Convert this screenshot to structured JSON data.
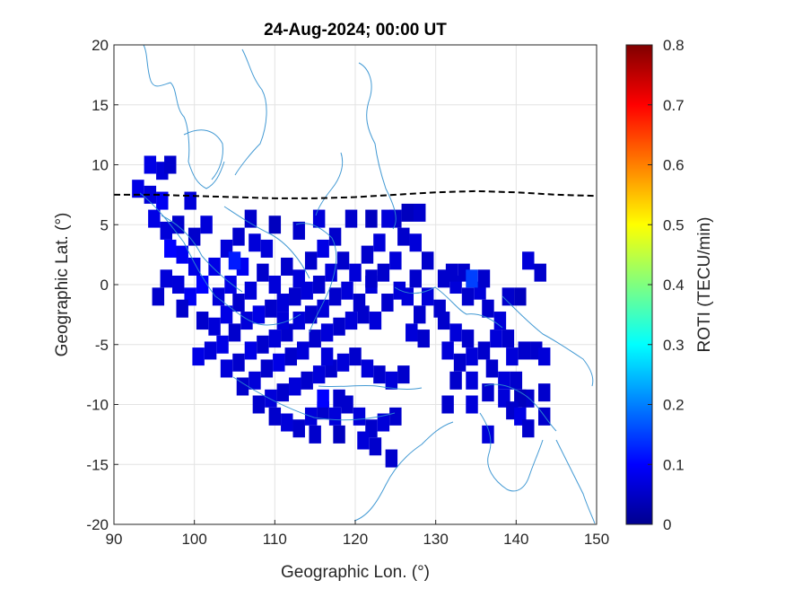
{
  "chart_data": {
    "type": "heatmap",
    "title": "24-Aug-2024; 00:00 UT",
    "xlabel": "Geographic Lon. (°)",
    "ylabel": "Geographic Lat. (°)",
    "xlim": [
      90,
      150
    ],
    "ylim": [
      -20,
      20
    ],
    "xticks": [
      90,
      100,
      110,
      120,
      130,
      140,
      150
    ],
    "yticks": [
      -20,
      -15,
      -10,
      -5,
      0,
      5,
      10,
      15,
      20
    ],
    "grid": true,
    "colorbar": {
      "label": "ROTI (TECU/min)",
      "colormap": "jet",
      "range": [
        0,
        0.8
      ],
      "ticks": [
        0,
        0.1,
        0.2,
        0.3,
        0.4,
        0.5,
        0.6,
        0.7,
        0.8
      ],
      "ticklabels": [
        "0",
        "0.1",
        "0.2",
        "0.3",
        "0.4",
        "0.5",
        "0.6",
        "0.7",
        "0.8"
      ]
    },
    "cell_size_deg": [
      1.5,
      1.5
    ],
    "roti_cells_lon_lat_value": [
      [
        94.5,
        10,
        0.08
      ],
      [
        96,
        9.5,
        0.07
      ],
      [
        97,
        10,
        0.06
      ],
      [
        93,
        8,
        0.08
      ],
      [
        94.5,
        7.5,
        0.07
      ],
      [
        96,
        7,
        0.09
      ],
      [
        95,
        5.5,
        0.08
      ],
      [
        96.5,
        4.5,
        0.07
      ],
      [
        98,
        5,
        0.06
      ],
      [
        99.5,
        7,
        0.07
      ],
      [
        97,
        3,
        0.1
      ],
      [
        98.5,
        2.5,
        0.09
      ],
      [
        100,
        4,
        0.06
      ],
      [
        101.5,
        5,
        0.07
      ],
      [
        100,
        1.5,
        0.08
      ],
      [
        96.5,
        0.5,
        0.07
      ],
      [
        95.5,
        -1,
        0.06
      ],
      [
        98,
        0,
        0.07
      ],
      [
        99.5,
        -1,
        0.09
      ],
      [
        101,
        0,
        0.1
      ],
      [
        102.5,
        1.5,
        0.08
      ],
      [
        104,
        3,
        0.07
      ],
      [
        105.5,
        4,
        0.06
      ],
      [
        103,
        -1,
        0.07
      ],
      [
        104.5,
        0,
        0.08
      ],
      [
        106,
        1.5,
        0.09
      ],
      [
        107.5,
        3.5,
        0.07
      ],
      [
        109,
        3,
        0.07
      ],
      [
        101,
        -3,
        0.06
      ],
      [
        102.5,
        -3.5,
        0.07
      ],
      [
        104,
        -2.5,
        0.08
      ],
      [
        105.5,
        -1.5,
        0.06
      ],
      [
        107,
        -0.5,
        0.07
      ],
      [
        108.5,
        1,
        0.06
      ],
      [
        110,
        0,
        0.07
      ],
      [
        111.5,
        1.5,
        0.06
      ],
      [
        113,
        0.5,
        0.07
      ],
      [
        114.5,
        2,
        0.06
      ],
      [
        116,
        3,
        0.08
      ],
      [
        117.5,
        4,
        0.06
      ],
      [
        102,
        -5.5,
        0.07
      ],
      [
        103.5,
        -5,
        0.08
      ],
      [
        105,
        -4,
        0.06
      ],
      [
        106.5,
        -3,
        0.07
      ],
      [
        108,
        -2.5,
        0.08
      ],
      [
        109.5,
        -2,
        0.06
      ],
      [
        111,
        -1.5,
        0.07
      ],
      [
        112.5,
        -1,
        0.06
      ],
      [
        114,
        -0.5,
        0.07
      ],
      [
        115.5,
        0,
        0.06
      ],
      [
        117,
        1,
        0.07
      ],
      [
        118.5,
        2,
        0.06
      ],
      [
        120,
        1,
        0.07
      ],
      [
        121.5,
        2.5,
        0.06
      ],
      [
        123,
        3.5,
        0.07
      ],
      [
        104,
        -7,
        0.07
      ],
      [
        105.5,
        -6.5,
        0.06
      ],
      [
        107,
        -5.5,
        0.08
      ],
      [
        108.5,
        -5,
        0.06
      ],
      [
        110,
        -4.5,
        0.07
      ],
      [
        111.5,
        -4,
        0.06
      ],
      [
        113,
        -3,
        0.07
      ],
      [
        114.5,
        -2.5,
        0.06
      ],
      [
        116,
        -2,
        0.07
      ],
      [
        117.5,
        -1,
        0.06
      ],
      [
        119,
        -0.5,
        0.07
      ],
      [
        120.5,
        -1.5,
        0.06
      ],
      [
        122,
        0,
        0.07
      ],
      [
        123.5,
        1,
        0.06
      ],
      [
        125,
        2,
        0.07
      ],
      [
        106,
        -8.5,
        0.06
      ],
      [
        107.5,
        -8,
        0.07
      ],
      [
        109,
        -7,
        0.06
      ],
      [
        110.5,
        -6.5,
        0.08
      ],
      [
        112,
        -6,
        0.06
      ],
      [
        113.5,
        -5.5,
        0.07
      ],
      [
        115,
        -4.5,
        0.06
      ],
      [
        116.5,
        -4,
        0.07
      ],
      [
        118,
        -3.5,
        0.06
      ],
      [
        119.5,
        -3,
        0.07
      ],
      [
        121,
        -2.5,
        0.06
      ],
      [
        122.5,
        -3,
        0.07
      ],
      [
        124,
        -1.5,
        0.06
      ],
      [
        125.5,
        -0.5,
        0.07
      ],
      [
        108,
        -10,
        0.06
      ],
      [
        109.5,
        -9.5,
        0.07
      ],
      [
        111,
        -9,
        0.06
      ],
      [
        112.5,
        -8.5,
        0.07
      ],
      [
        114,
        -8,
        0.06
      ],
      [
        115.5,
        -7.5,
        0.07
      ],
      [
        117,
        -7,
        0.06
      ],
      [
        118.5,
        -6.5,
        0.07
      ],
      [
        120,
        -6,
        0.06
      ],
      [
        121.5,
        -7,
        0.07
      ],
      [
        123,
        -7.5,
        0.06
      ],
      [
        124.5,
        -8,
        0.07
      ],
      [
        126,
        -7.5,
        0.06
      ],
      [
        110,
        -11,
        0.06
      ],
      [
        111.5,
        -11.5,
        0.07
      ],
      [
        113,
        -12,
        0.06
      ],
      [
        114.5,
        -11,
        0.07
      ],
      [
        116,
        -10.5,
        0.06
      ],
      [
        117.5,
        -11,
        0.07
      ],
      [
        119,
        -10,
        0.06
      ],
      [
        120.5,
        -11,
        0.07
      ],
      [
        122,
        -12,
        0.06
      ],
      [
        123.5,
        -11.5,
        0.07
      ],
      [
        125,
        -11,
        0.06
      ],
      [
        115,
        -12.5,
        0.06
      ],
      [
        118,
        -12.5,
        0.05
      ],
      [
        121,
        -13,
        0.07
      ],
      [
        122.5,
        -13.5,
        0.06
      ],
      [
        124.5,
        -14.5,
        0.06
      ],
      [
        107,
        5.5,
        0.06
      ],
      [
        110,
        5,
        0.05
      ],
      [
        113,
        4.5,
        0.06
      ],
      [
        115.5,
        5.5,
        0.07
      ],
      [
        119.5,
        5.5,
        0.06
      ],
      [
        122,
        5.5,
        0.05
      ],
      [
        125,
        5.5,
        0.06
      ],
      [
        126,
        4,
        0.06
      ],
      [
        127.5,
        3.5,
        0.07
      ],
      [
        129,
        2,
        0.06
      ],
      [
        127.5,
        0.5,
        0.06
      ],
      [
        129,
        -1,
        0.07
      ],
      [
        130.5,
        -2,
        0.06
      ],
      [
        128,
        -2.5,
        0.06
      ],
      [
        126.5,
        -1,
        0.07
      ],
      [
        131,
        0.5,
        0.06
      ],
      [
        132.5,
        0,
        0.07
      ],
      [
        134,
        -1,
        0.06
      ],
      [
        135.5,
        -0.5,
        0.07
      ],
      [
        132,
        1,
        0.06
      ],
      [
        133.5,
        1,
        0.06
      ],
      [
        134.5,
        0.5,
        0.15
      ],
      [
        136,
        0.5,
        0.06
      ],
      [
        136.5,
        -2,
        0.06
      ],
      [
        138,
        -3,
        0.07
      ],
      [
        139,
        -1,
        0.06
      ],
      [
        140.5,
        -1,
        0.05
      ],
      [
        131,
        -3,
        0.06
      ],
      [
        132.5,
        -4,
        0.07
      ],
      [
        134,
        -4.5,
        0.06
      ],
      [
        131.5,
        -5.5,
        0.07
      ],
      [
        133,
        -6.5,
        0.06
      ],
      [
        134.5,
        -6,
        0.07
      ],
      [
        136,
        -5.5,
        0.06
      ],
      [
        137.5,
        -4.5,
        0.07
      ],
      [
        139,
        -4.5,
        0.06
      ],
      [
        139.5,
        -6,
        0.07
      ],
      [
        141,
        -5.5,
        0.06
      ],
      [
        142.5,
        -5.5,
        0.06
      ],
      [
        143.5,
        -6,
        0.07
      ],
      [
        137,
        -7,
        0.06
      ],
      [
        138.5,
        -8,
        0.07
      ],
      [
        140,
        -8,
        0.06
      ],
      [
        141.5,
        -9.5,
        0.06
      ],
      [
        140.5,
        -9.5,
        0.05
      ],
      [
        138.5,
        -9.5,
        0.07
      ],
      [
        136.5,
        -9,
        0.06
      ],
      [
        134.5,
        -8,
        0.07
      ],
      [
        132.5,
        -8,
        0.06
      ],
      [
        131.5,
        -10,
        0.06
      ],
      [
        134.5,
        -10,
        0.07
      ],
      [
        139.5,
        -10.5,
        0.06
      ],
      [
        140.5,
        -11,
        0.08
      ],
      [
        143.5,
        -9,
        0.06
      ],
      [
        143.5,
        -11,
        0.06
      ],
      [
        136.5,
        -12.5,
        0.07
      ],
      [
        141.5,
        -12,
        0.06
      ],
      [
        141.5,
        2,
        0.07
      ],
      [
        143,
        1,
        0.06
      ],
      [
        128.5,
        -4.5,
        0.06
      ],
      [
        127,
        -4,
        0.07
      ],
      [
        128,
        6,
        0.06
      ],
      [
        126.5,
        6,
        0.05
      ],
      [
        124,
        5.5,
        0.07
      ],
      [
        122,
        0.5,
        0.06
      ],
      [
        116.5,
        -6,
        0.07
      ],
      [
        118,
        -9.5,
        0.06
      ],
      [
        100.5,
        -6,
        0.08
      ],
      [
        111,
        -3,
        0.07
      ],
      [
        98.5,
        -2,
        0.06
      ],
      [
        116,
        -9.5,
        0.1
      ],
      [
        105,
        2,
        0.12
      ]
    ],
    "magnetic_equator_lon_lat": [
      [
        90,
        7.5
      ],
      [
        95,
        7.5
      ],
      [
        100,
        7.4
      ],
      [
        105,
        7.3
      ],
      [
        110,
        7.2
      ],
      [
        115,
        7.2
      ],
      [
        120,
        7.3
      ],
      [
        125,
        7.5
      ],
      [
        130,
        7.7
      ],
      [
        135,
        7.8
      ],
      [
        140,
        7.7
      ],
      [
        145,
        7.5
      ],
      [
        150,
        7.4
      ]
    ]
  }
}
